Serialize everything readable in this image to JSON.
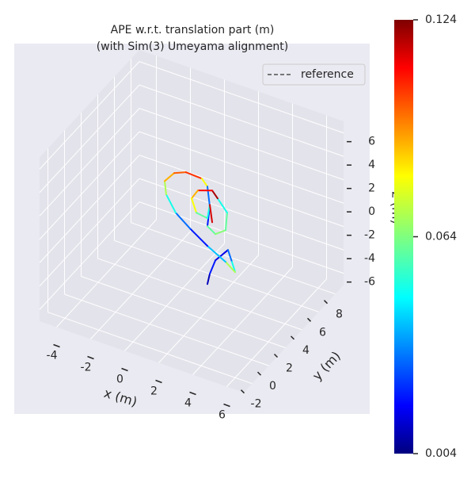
{
  "chart_data": {
    "type": "line3d",
    "title": "APE w.r.t. translation part (m)",
    "subtitle": "(with Sim(3) Umeyama alignment)",
    "xlabel": "x (m)",
    "ylabel": "y (m)",
    "zlabel": "z (m)",
    "xlim": [
      -5,
      7
    ],
    "ylim": [
      -3,
      9
    ],
    "zlim": [
      -7,
      7
    ],
    "xticks": [
      -4,
      -2,
      0,
      2,
      4,
      6
    ],
    "yticks": [
      -2,
      0,
      2,
      4,
      6,
      8
    ],
    "zticks": [
      -6,
      -4,
      -2,
      0,
      2,
      4,
      6
    ],
    "grid": true,
    "legend": {
      "label": "reference",
      "color": "#666666",
      "position": "upper right"
    },
    "colorbar": {
      "colormap": "jet",
      "clim": [
        0.004,
        0.124
      ],
      "ticks": [
        0.004,
        0.064,
        0.124
      ]
    },
    "trajectory": {
      "x": [
        1.93,
        2.07,
        2.4,
        3.14,
        3.37,
        3.56,
        3.0,
        1.93,
        0.91,
        0.07,
        -0.49,
        -0.58,
        -0.02,
        0.67,
        1.6,
        1.93,
        2.07,
        1.93,
        2.4,
        3.0,
        3.09,
        2.53,
        2.21,
        1.37,
        1.0,
        1.28,
        1.93,
        2.07,
        2.21
      ],
      "y": [
        3,
        3,
        3,
        3,
        3,
        3,
        3,
        3,
        3,
        3,
        3,
        3,
        3,
        3,
        3,
        3,
        3,
        3,
        3,
        3,
        3,
        3,
        3,
        3,
        3,
        3,
        3,
        3,
        3
      ],
      "z": [
        -4.9,
        -3.95,
        -2.63,
        -1.37,
        -2.27,
        -3.05,
        -2.46,
        -1.64,
        -0.67,
        0.25,
        1.53,
        2.63,
        3.6,
        4.02,
        3.95,
        3.44,
        1.81,
        0.05,
        -0.39,
        0.25,
        1.79,
        2.73,
        3.24,
        2.82,
        1.95,
        0.87,
        0.73,
        1.95,
        0.53
      ],
      "error": [
        0.01,
        0.02,
        0.015,
        0.03,
        0.05,
        0.07,
        0.04,
        0.02,
        0.03,
        0.05,
        0.07,
        0.09,
        0.1,
        0.105,
        0.08,
        0.03,
        0.02,
        0.06,
        0.065,
        0.06,
        0.05,
        0.12,
        0.11,
        0.09,
        0.08,
        0.06,
        0.05,
        0.115,
        0.11
      ]
    }
  }
}
